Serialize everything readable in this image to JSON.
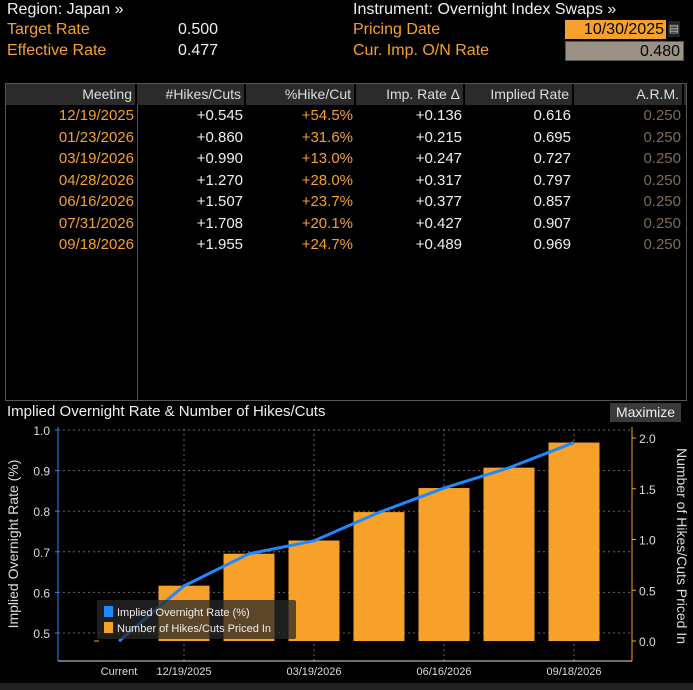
{
  "header": {
    "region": "Region: Japan »",
    "instrument": "Instrument: Overnight Index Swaps »",
    "target_rate_label": "Target Rate",
    "target_rate": "0.500",
    "effective_rate_label": "Effective Rate",
    "effective_rate": "0.477",
    "pricing_date_label": "Pricing Date",
    "pricing_date": "10/30/2025",
    "cur_imp_label": "Cur. Imp. O/N Rate",
    "cur_imp_rate": "0.480"
  },
  "table": {
    "columns": [
      "Meeting",
      "#Hikes/Cuts",
      "%Hike/Cut",
      "Imp. Rate Δ",
      "Implied Rate",
      "A.R.M."
    ],
    "rows": [
      [
        "12/19/2025",
        "+0.545",
        "+54.5%",
        "+0.136",
        "0.616",
        "0.250"
      ],
      [
        "01/23/2026",
        "+0.860",
        "+31.6%",
        "+0.215",
        "0.695",
        "0.250"
      ],
      [
        "03/19/2026",
        "+0.990",
        "+13.0%",
        "+0.247",
        "0.727",
        "0.250"
      ],
      [
        "04/28/2026",
        "+1.270",
        "+28.0%",
        "+0.317",
        "0.797",
        "0.250"
      ],
      [
        "06/16/2026",
        "+1.507",
        "+23.7%",
        "+0.377",
        "0.857",
        "0.250"
      ],
      [
        "07/31/2026",
        "+1.708",
        "+20.1%",
        "+0.427",
        "0.907",
        "0.250"
      ],
      [
        "09/18/2026",
        "+1.955",
        "+24.7%",
        "+0.489",
        "0.969",
        "0.250"
      ]
    ]
  },
  "chart": {
    "maximize_label": "Maximize"
  },
  "chart_data": {
    "type": "bar+line",
    "title": "Implied Overnight Rate & Number of Hikes/Cuts",
    "categories": [
      "Current",
      "12/19/2025",
      "01/23/2026",
      "03/19/2026",
      "04/28/2026",
      "06/16/2026",
      "07/31/2026",
      "09/18/2026"
    ],
    "xtick_labels": [
      "Current",
      "12/19/2025",
      "03/19/2026",
      "06/16/2026",
      "09/18/2026"
    ],
    "ylabel_left": "Implied Overnight Rate (%)",
    "ylabel_right": "Number of Hikes/Cuts Priced In",
    "ylim_left": [
      0.45,
      1.0
    ],
    "yticks_left": [
      "0.5",
      "0.6",
      "0.7",
      "0.8",
      "0.9",
      "1.0"
    ],
    "ylim_right": [
      -0.2,
      2.1
    ],
    "yticks_right": [
      "0.0",
      "0.5",
      "1.0",
      "1.5",
      "2.0"
    ],
    "series": [
      {
        "name": "Implied Overnight Rate (%)",
        "type": "line",
        "axis": "left",
        "color": "#1e88ff",
        "values": [
          0.48,
          0.616,
          0.695,
          0.727,
          0.797,
          0.857,
          0.907,
          0.969
        ]
      },
      {
        "name": "Number of Hikes/Cuts Priced In",
        "type": "bar",
        "axis": "right",
        "color": "#f7a02a",
        "values": [
          0,
          0.545,
          0.86,
          0.99,
          1.27,
          1.507,
          1.708,
          1.955
        ]
      }
    ],
    "grid": true,
    "legend": "bottom-left"
  }
}
